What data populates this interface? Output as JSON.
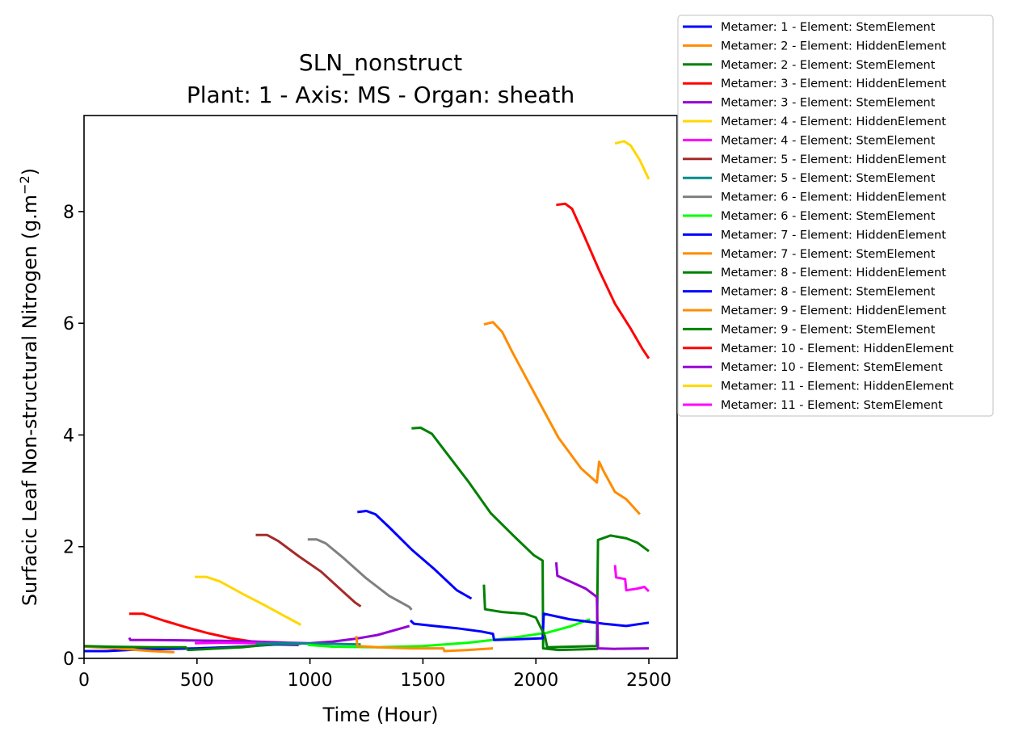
{
  "chart_data": {
    "type": "line",
    "title": "SLN_nonstruct",
    "subtitle": "Plant: 1 - Axis: MS - Organ: sheath",
    "xlabel": "Time (Hour)",
    "ylabel": "Surfacic Leaf Non-structural Nitrogen (g.m",
    "ylabel_superscript": "−2",
    "ylabel_suffix": ")",
    "xlim": [
      0,
      2625
    ],
    "ylim": [
      0,
      9.72
    ],
    "xticks": [
      0,
      500,
      1000,
      1500,
      2000,
      2500
    ],
    "yticks": [
      0,
      2,
      4,
      6,
      8
    ],
    "grid": false,
    "legend_position": "outside-top-right",
    "series": [
      {
        "name": "Metamer: 1 - Element: StemElement",
        "color": "#0000ff",
        "points": [
          [
            0,
            0.13
          ],
          [
            100,
            0.13
          ],
          [
            250,
            0.16
          ],
          [
            500,
            0.18
          ],
          [
            700,
            0.21
          ],
          [
            850,
            0.25
          ],
          [
            950,
            0.24
          ]
        ]
      },
      {
        "name": "Metamer: 2 - Element: HiddenElement",
        "color": "#ff8c00",
        "points": [
          [
            0,
            0.21
          ],
          [
            100,
            0.19
          ],
          [
            200,
            0.16
          ],
          [
            300,
            0.13
          ],
          [
            400,
            0.11
          ]
        ]
      },
      {
        "name": "Metamer: 2 - Element: StemElement",
        "color": "#008000",
        "points": [
          [
            0,
            0.22
          ],
          [
            100,
            0.21
          ],
          [
            300,
            0.2
          ],
          [
            450,
            0.2
          ],
          [
            460,
            0.15
          ],
          [
            600,
            0.18
          ],
          [
            700,
            0.2
          ],
          [
            850,
            0.26
          ],
          [
            950,
            0.25
          ]
        ]
      },
      {
        "name": "Metamer: 3 - Element: HiddenElement",
        "color": "#ff0000",
        "points": [
          [
            200,
            0.8
          ],
          [
            260,
            0.8
          ],
          [
            350,
            0.68
          ],
          [
            450,
            0.56
          ],
          [
            550,
            0.45
          ],
          [
            650,
            0.36
          ],
          [
            750,
            0.3
          ],
          [
            850,
            0.28
          ]
        ]
      },
      {
        "name": "Metamer: 3 - Element: StemElement",
        "color": "#9400d3",
        "points": [
          [
            200,
            0.37
          ],
          [
            205,
            0.33
          ],
          [
            300,
            0.33
          ],
          [
            500,
            0.32
          ],
          [
            700,
            0.31
          ],
          [
            900,
            0.28
          ],
          [
            1000,
            0.27
          ],
          [
            1100,
            0.3
          ],
          [
            1200,
            0.35
          ],
          [
            1300,
            0.42
          ],
          [
            1440,
            0.58
          ]
        ]
      },
      {
        "name": "Metamer: 4 - Element: HiddenElement",
        "color": "#ffd700",
        "points": [
          [
            490,
            1.46
          ],
          [
            540,
            1.46
          ],
          [
            600,
            1.38
          ],
          [
            700,
            1.16
          ],
          [
            800,
            0.95
          ],
          [
            900,
            0.73
          ],
          [
            960,
            0.6
          ]
        ]
      },
      {
        "name": "Metamer: 4 - Element: StemElement",
        "color": "#ff00ff",
        "points": [
          [
            490,
            0.27
          ],
          [
            600,
            0.28
          ],
          [
            800,
            0.27
          ],
          [
            960,
            0.26
          ]
        ]
      },
      {
        "name": "Metamer: 5 - Element: HiddenElement",
        "color": "#a52a2a",
        "points": [
          [
            760,
            2.21
          ],
          [
            810,
            2.21
          ],
          [
            860,
            2.1
          ],
          [
            950,
            1.83
          ],
          [
            1050,
            1.55
          ],
          [
            1150,
            1.18
          ],
          [
            1200,
            1.0
          ],
          [
            1225,
            0.93
          ]
        ]
      },
      {
        "name": "Metamer: 5 - Element: StemElement",
        "color": "#008b8b",
        "points": [
          [
            760,
            0.26
          ],
          [
            900,
            0.27
          ],
          [
            1100,
            0.26
          ],
          [
            1225,
            0.25
          ]
        ]
      },
      {
        "name": "Metamer: 6 - Element: HiddenElement",
        "color": "#808080",
        "points": [
          [
            990,
            2.13
          ],
          [
            1030,
            2.13
          ],
          [
            1070,
            2.06
          ],
          [
            1150,
            1.79
          ],
          [
            1250,
            1.43
          ],
          [
            1350,
            1.12
          ],
          [
            1440,
            0.92
          ],
          [
            1450,
            0.87
          ]
        ]
      },
      {
        "name": "Metamer: 6 - Element: StemElement",
        "color": "#00ff00",
        "points": [
          [
            990,
            0.24
          ],
          [
            1100,
            0.21
          ],
          [
            1300,
            0.2
          ],
          [
            1500,
            0.22
          ],
          [
            1700,
            0.28
          ],
          [
            1900,
            0.37
          ],
          [
            2050,
            0.46
          ],
          [
            2150,
            0.57
          ],
          [
            2240,
            0.7
          ]
        ]
      },
      {
        "name": "Metamer: 7 - Element: HiddenElement",
        "color": "#0000ff",
        "points": [
          [
            1210,
            2.62
          ],
          [
            1250,
            2.64
          ],
          [
            1290,
            2.58
          ],
          [
            1350,
            2.35
          ],
          [
            1450,
            1.95
          ],
          [
            1550,
            1.6
          ],
          [
            1650,
            1.22
          ],
          [
            1715,
            1.07
          ]
        ]
      },
      {
        "name": "Metamer: 7 - Element: StemElement",
        "color": "#ff8c00",
        "points": [
          [
            1205,
            0.4
          ],
          [
            1210,
            0.22
          ],
          [
            1300,
            0.2
          ],
          [
            1450,
            0.18
          ],
          [
            1590,
            0.18
          ],
          [
            1595,
            0.13
          ],
          [
            1700,
            0.15
          ],
          [
            1810,
            0.18
          ]
        ]
      },
      {
        "name": "Metamer: 8 - Element: HiddenElement",
        "color": "#008000",
        "points": [
          [
            1450,
            4.12
          ],
          [
            1490,
            4.13
          ],
          [
            1540,
            4.02
          ],
          [
            1600,
            3.7
          ],
          [
            1700,
            3.17
          ],
          [
            1800,
            2.6
          ],
          [
            1900,
            2.2
          ],
          [
            1990,
            1.85
          ],
          [
            2030,
            1.75
          ],
          [
            2032,
            0.18
          ],
          [
            2100,
            0.15
          ],
          [
            2200,
            0.16
          ],
          [
            2275,
            0.17
          ]
        ]
      },
      {
        "name": "Metamer: 8 - Element: StemElement",
        "color": "#0000ff",
        "points": [
          [
            1445,
            0.68
          ],
          [
            1460,
            0.62
          ],
          [
            1550,
            0.58
          ],
          [
            1650,
            0.54
          ],
          [
            1760,
            0.48
          ],
          [
            1810,
            0.44
          ],
          [
            1815,
            0.33
          ],
          [
            1900,
            0.34
          ],
          [
            2030,
            0.36
          ],
          [
            2035,
            0.8
          ],
          [
            2150,
            0.7
          ],
          [
            2300,
            0.62
          ],
          [
            2400,
            0.58
          ],
          [
            2500,
            0.64
          ]
        ]
      },
      {
        "name": "Metamer: 9 - Element: HiddenElement",
        "color": "#ff8c00",
        "points": [
          [
            1770,
            5.98
          ],
          [
            1810,
            6.02
          ],
          [
            1850,
            5.85
          ],
          [
            1900,
            5.45
          ],
          [
            2000,
            4.7
          ],
          [
            2100,
            3.95
          ],
          [
            2200,
            3.4
          ],
          [
            2270,
            3.15
          ],
          [
            2280,
            3.52
          ],
          [
            2300,
            3.35
          ],
          [
            2350,
            2.98
          ],
          [
            2400,
            2.85
          ],
          [
            2460,
            2.58
          ]
        ]
      },
      {
        "name": "Metamer: 9 - Element: StemElement",
        "color": "#008000",
        "points": [
          [
            1770,
            1.32
          ],
          [
            1775,
            0.88
          ],
          [
            1850,
            0.83
          ],
          [
            1950,
            0.8
          ],
          [
            2000,
            0.73
          ],
          [
            2040,
            0.4
          ],
          [
            2050,
            0.2
          ],
          [
            2270,
            0.22
          ],
          [
            2275,
            2.12
          ],
          [
            2330,
            2.2
          ],
          [
            2400,
            2.15
          ],
          [
            2450,
            2.07
          ],
          [
            2500,
            1.92
          ]
        ]
      },
      {
        "name": "Metamer: 10 - Element: HiddenElement",
        "color": "#ff0000",
        "points": [
          [
            2090,
            8.12
          ],
          [
            2130,
            8.14
          ],
          [
            2160,
            8.05
          ],
          [
            2210,
            7.6
          ],
          [
            2280,
            6.95
          ],
          [
            2350,
            6.35
          ],
          [
            2420,
            5.9
          ],
          [
            2470,
            5.55
          ],
          [
            2500,
            5.37
          ]
        ]
      },
      {
        "name": "Metamer: 10 - Element: StemElement",
        "color": "#9400d3",
        "points": [
          [
            2090,
            1.72
          ],
          [
            2095,
            1.48
          ],
          [
            2150,
            1.38
          ],
          [
            2220,
            1.25
          ],
          [
            2270,
            1.1
          ],
          [
            2275,
            0.18
          ],
          [
            2350,
            0.17
          ],
          [
            2500,
            0.18
          ]
        ]
      },
      {
        "name": "Metamer: 11 - Element: HiddenElement",
        "color": "#ffd700",
        "points": [
          [
            2350,
            9.22
          ],
          [
            2390,
            9.26
          ],
          [
            2420,
            9.18
          ],
          [
            2460,
            8.92
          ],
          [
            2500,
            8.58
          ]
        ]
      },
      {
        "name": "Metamer: 11 - Element: StemElement",
        "color": "#ff00ff",
        "points": [
          [
            2350,
            1.67
          ],
          [
            2355,
            1.45
          ],
          [
            2395,
            1.42
          ],
          [
            2400,
            1.22
          ],
          [
            2450,
            1.25
          ],
          [
            2480,
            1.28
          ],
          [
            2500,
            1.2
          ]
        ]
      }
    ]
  }
}
